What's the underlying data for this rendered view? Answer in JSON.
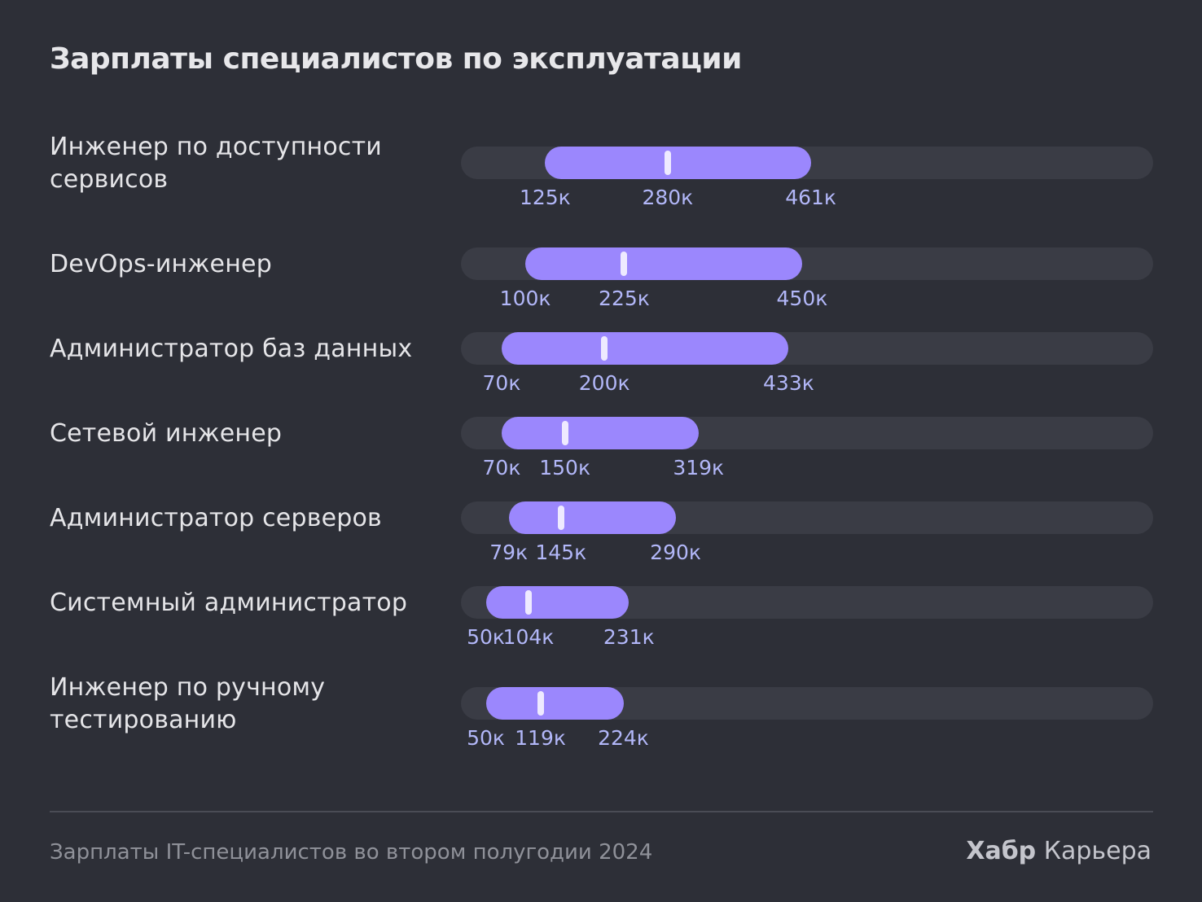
{
  "title": "Зарплаты специалистов по эксплуатации",
  "footer": {
    "source": "Зарплаты IT-специалистов во втором полугодии 2024",
    "brand_strong": "Хабр",
    "brand_rest": "Карьера"
  },
  "colors": {
    "background": "#2d2f37",
    "track": "#3a3c45",
    "range": "#9b87fd",
    "median": "#eeeaff",
    "tick_text": "#b2b7f8"
  },
  "chart_data": {
    "type": "bar",
    "title": "Зарплаты специалистов по эксплуатации",
    "subtype": "salary range (min – median – max)",
    "unit": "к",
    "grid": false,
    "legend": "none",
    "categories": [
      "Инженер по доступности сервисов",
      "DevOps-инженер",
      "Администратор баз данных",
      "Сетевой инженер",
      "Администратор серверов",
      "Системный администратор",
      "Инженер по ручному тестированию"
    ],
    "rows": [
      {
        "label": "Инженер по доступности сервисов",
        "min": 125,
        "median": 280,
        "max": 461,
        "min_label": "125к",
        "median_label": "280к",
        "max_label": "461к"
      },
      {
        "label": "DevOps-инженер",
        "min": 100,
        "median": 225,
        "max": 450,
        "min_label": "100к",
        "median_label": "225к",
        "max_label": "450к"
      },
      {
        "label": "Администратор баз данных",
        "min": 70,
        "median": 200,
        "max": 433,
        "min_label": "70к",
        "median_label": "200к",
        "max_label": "433к"
      },
      {
        "label": "Сетевой инженер",
        "min": 70,
        "median": 150,
        "max": 319,
        "min_label": "70к",
        "median_label": "150к",
        "max_label": "319к"
      },
      {
        "label": "Администратор серверов",
        "min": 79,
        "median": 145,
        "max": 290,
        "min_label": "79к",
        "median_label": "145к",
        "max_label": "290к"
      },
      {
        "label": "Системный администратор",
        "min": 50,
        "median": 104,
        "max": 231,
        "min_label": "50к",
        "median_label": "104к",
        "max_label": "231к"
      },
      {
        "label": "Инженер по ручному тестированию",
        "min": 50,
        "median": 119,
        "max": 224,
        "min_label": "50к",
        "median_label": "119к",
        "max_label": "224к"
      }
    ]
  }
}
